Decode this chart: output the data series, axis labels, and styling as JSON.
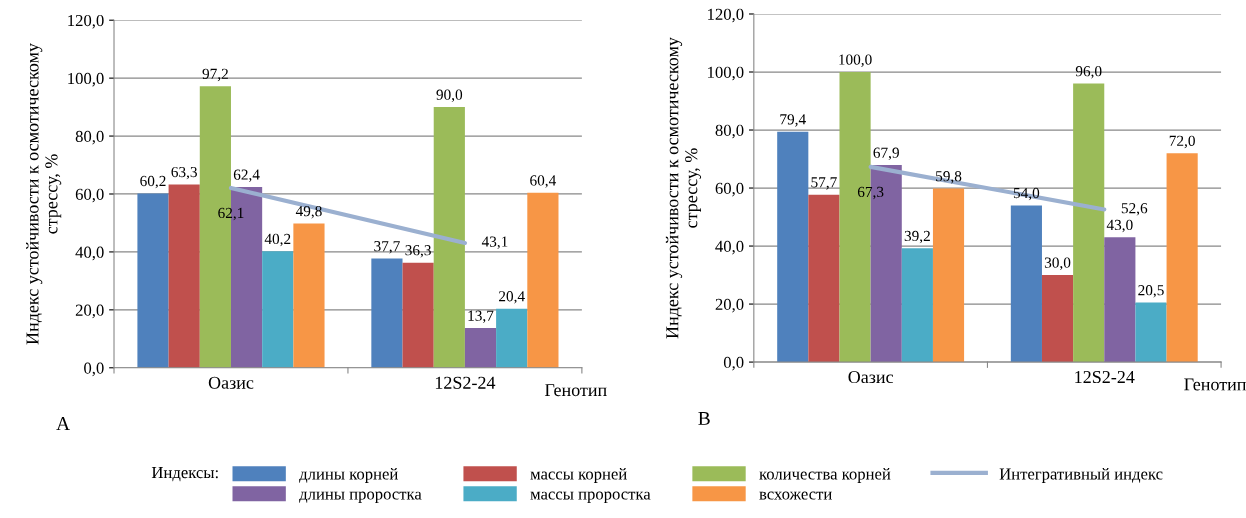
{
  "chart_data": [
    {
      "type": "bar",
      "ylabel": "Индекс устойчивости к осмотическому\nстрессу, %",
      "xlabel": "Генотип",
      "legend_title": "Индексы:",
      "annotations": [
        "A"
      ],
      "categories": [
        "Оазис",
        "12S2-24"
      ],
      "ylim": [
        0,
        120
      ],
      "yticks": [
        {
          "value": 0,
          "label": "0,0"
        },
        {
          "value": 20,
          "label": "20,0"
        },
        {
          "value": 40,
          "label": "40,0"
        },
        {
          "value": 60,
          "label": "60,0"
        },
        {
          "value": 80,
          "label": "80,0"
        },
        {
          "value": 100,
          "label": "100,0"
        },
        {
          "value": 120,
          "label": "120,0"
        }
      ],
      "grid": "y",
      "legend": "bottom",
      "series": [
        {
          "name": "длины корней",
          "color": "#4f81bd",
          "values": [
            60.2,
            37.7
          ],
          "value_labels": [
            "60,2",
            "37,7"
          ]
        },
        {
          "name": "массы корней",
          "color": "#c0504d",
          "values": [
            63.3,
            36.3
          ],
          "value_labels": [
            "63,3",
            "36,3"
          ]
        },
        {
          "name": "количества корней",
          "color": "#9bbb59",
          "values": [
            97.2,
            90.0
          ],
          "value_labels": [
            "97,2",
            "90,0"
          ]
        },
        {
          "name": "длины проростка",
          "color": "#8064a2",
          "values": [
            62.4,
            13.7
          ],
          "value_labels": [
            "62,4",
            "13,7"
          ]
        },
        {
          "name": "массы проростка",
          "color": "#4bacc6",
          "values": [
            40.2,
            20.4
          ],
          "value_labels": [
            "40,2",
            "20,4"
          ]
        },
        {
          "name": "всхожести",
          "color": "#f79646",
          "values": [
            49.8,
            60.4
          ],
          "value_labels": [
            "49,8",
            "60,4"
          ]
        },
        {
          "name": "Интегративный индекс",
          "type": "line",
          "color": "#9bb0d0",
          "values": [
            62.1,
            43.1
          ],
          "value_labels": [
            "62,1",
            "43,1"
          ]
        }
      ]
    },
    {
      "type": "bar",
      "ylabel": "Индекс устойчивости к осмотическому\nстрессу, %",
      "xlabel": "Генотип",
      "annotations": [
        "B"
      ],
      "categories": [
        "Оазис",
        "12S2-24"
      ],
      "ylim": [
        0,
        120
      ],
      "yticks": [
        {
          "value": 0,
          "label": "0,0"
        },
        {
          "value": 20,
          "label": "20,0"
        },
        {
          "value": 40,
          "label": "40,0"
        },
        {
          "value": 60,
          "label": "60,0"
        },
        {
          "value": 80,
          "label": "80,0"
        },
        {
          "value": 100,
          "label": "100,0"
        },
        {
          "value": 120,
          "label": "120,0"
        }
      ],
      "grid": "y",
      "series": [
        {
          "color": "#4f81bd",
          "values": [
            79.4,
            54.0
          ],
          "value_labels": [
            "79,4",
            "54,0"
          ]
        },
        {
          "color": "#c0504d",
          "values": [
            57.7,
            30.0
          ],
          "value_labels": [
            "57,7",
            "30,0"
          ]
        },
        {
          "color": "#9bbb59",
          "values": [
            100.0,
            96.0
          ],
          "value_labels": [
            "100,0",
            "96,0"
          ]
        },
        {
          "color": "#8064a2",
          "values": [
            67.9,
            43.0
          ],
          "value_labels": [
            "67,9",
            "43,0"
          ]
        },
        {
          "color": "#4bacc6",
          "values": [
            39.2,
            20.5
          ],
          "value_labels": [
            "39,2",
            "20,5"
          ]
        },
        {
          "color": "#f79646",
          "values": [
            59.8,
            72.0
          ],
          "value_labels": [
            "59,8",
            "72,0"
          ]
        },
        {
          "type": "line",
          "color": "#9bb0d0",
          "values": [
            67.3,
            52.6
          ],
          "value_labels": [
            "67,3",
            "52,6"
          ]
        }
      ]
    }
  ]
}
